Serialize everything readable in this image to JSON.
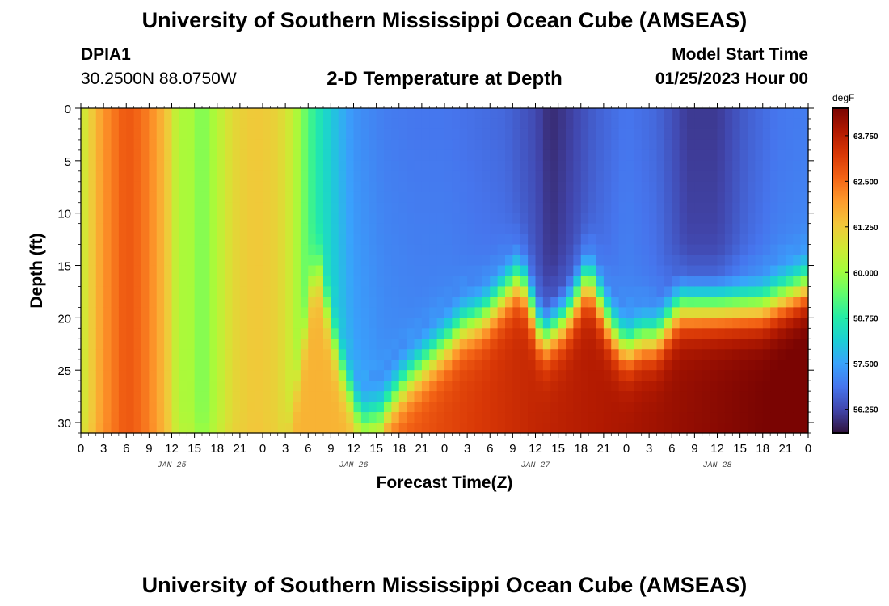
{
  "header": {
    "main_title": "University of Southern Mississippi Ocean Cube (AMSEAS)",
    "station_id": "DPIA1",
    "station_coords": "30.2500N  88.0750W",
    "plot_title": "2-D Temperature at Depth",
    "start_label": "Model Start Time",
    "start_value": "01/25/2023 Hour 00"
  },
  "footer": {
    "repeated_title": "University of Southern Mississippi Ocean Cube (AMSEAS)"
  },
  "chart_data": {
    "type": "heatmap",
    "title": "2-D Temperature at Depth",
    "xlabel": "Forecast Time(Z)",
    "ylabel": "Depth (ft)",
    "x_range_hours": [
      0,
      96
    ],
    "y_range_ft": [
      0,
      31
    ],
    "x_tick_labels": [
      "0",
      "3",
      "6",
      "9",
      "12",
      "15",
      "18",
      "21",
      "0",
      "3",
      "6",
      "9",
      "12",
      "15",
      "18",
      "21",
      "0",
      "3",
      "6",
      "9",
      "12",
      "15",
      "18",
      "21",
      "0",
      "3",
      "6",
      "9",
      "12",
      "15",
      "18",
      "21",
      "0"
    ],
    "x_tick_hours": [
      0,
      3,
      6,
      9,
      12,
      15,
      18,
      21,
      24,
      27,
      30,
      33,
      36,
      39,
      42,
      45,
      48,
      51,
      54,
      57,
      60,
      63,
      66,
      69,
      72,
      75,
      78,
      81,
      84,
      87,
      90,
      93,
      96
    ],
    "y_tick_labels": [
      "0",
      "5",
      "10",
      "15",
      "20",
      "25",
      "30"
    ],
    "y_tick_values": [
      0,
      5,
      10,
      15,
      20,
      25,
      30
    ],
    "day_labels": [
      {
        "text": "JAN 25",
        "hour": 12
      },
      {
        "text": "JAN 26",
        "hour": 36
      },
      {
        "text": "JAN 27",
        "hour": 60
      },
      {
        "text": "JAN 28",
        "hour": 84
      }
    ],
    "colorbar": {
      "units": "degF",
      "min": 55.6,
      "max": 64.5,
      "tick_labels": [
        "63.750",
        "62.500",
        "61.250",
        "60.000",
        "58.750",
        "57.500",
        "56.250"
      ],
      "tick_values": [
        63.75,
        62.5,
        61.25,
        60.0,
        58.75,
        57.5,
        56.25
      ],
      "colormap": [
        "#30123b",
        "#4145ab",
        "#4675ed",
        "#39a2fc",
        "#1bcfd4",
        "#24eca6",
        "#61fc6c",
        "#a4fc3b",
        "#d1e834",
        "#f3c63a",
        "#fe9b2d",
        "#f36315",
        "#d93806",
        "#b11901",
        "#7a0402"
      ]
    },
    "thermocline_depth_by_hour": {
      "hours": [
        0,
        8,
        10,
        12,
        14,
        17,
        19,
        21,
        23,
        25,
        27,
        29,
        31,
        34,
        37,
        40,
        43,
        46,
        49,
        50,
        53,
        58,
        61,
        64,
        67,
        70,
        72,
        74,
        76,
        79,
        82,
        86,
        90,
        93,
        96
      ],
      "depths": [
        34,
        34,
        34,
        34,
        34,
        34,
        34,
        34,
        34,
        34,
        33,
        24,
        14,
        24,
        30,
        29,
        26,
        24,
        22,
        21,
        20,
        16,
        22,
        20,
        16,
        21,
        23,
        22,
        22,
        19,
        19,
        19,
        19,
        18,
        17
      ]
    },
    "surface_temps_by_hour": {
      "hours": [
        0,
        3,
        6,
        8,
        10,
        12,
        13,
        14,
        16,
        18,
        20,
        23,
        26,
        28,
        30,
        32,
        34,
        36,
        40,
        44,
        48,
        56,
        60,
        62,
        64,
        68,
        72,
        76,
        80,
        84,
        88,
        92,
        96
      ],
      "temps": [
        60.5,
        62.0,
        62.8,
        62.5,
        61.9,
        61.0,
        60.0,
        60.3,
        59.6,
        60.3,
        61.0,
        61.3,
        61.1,
        60.5,
        59.2,
        58.4,
        57.8,
        57.3,
        57.0,
        56.9,
        56.9,
        56.7,
        56.3,
        55.9,
        56.1,
        56.6,
        56.9,
        56.7,
        56.1,
        56.1,
        56.6,
        56.9,
        57.0
      ]
    }
  }
}
